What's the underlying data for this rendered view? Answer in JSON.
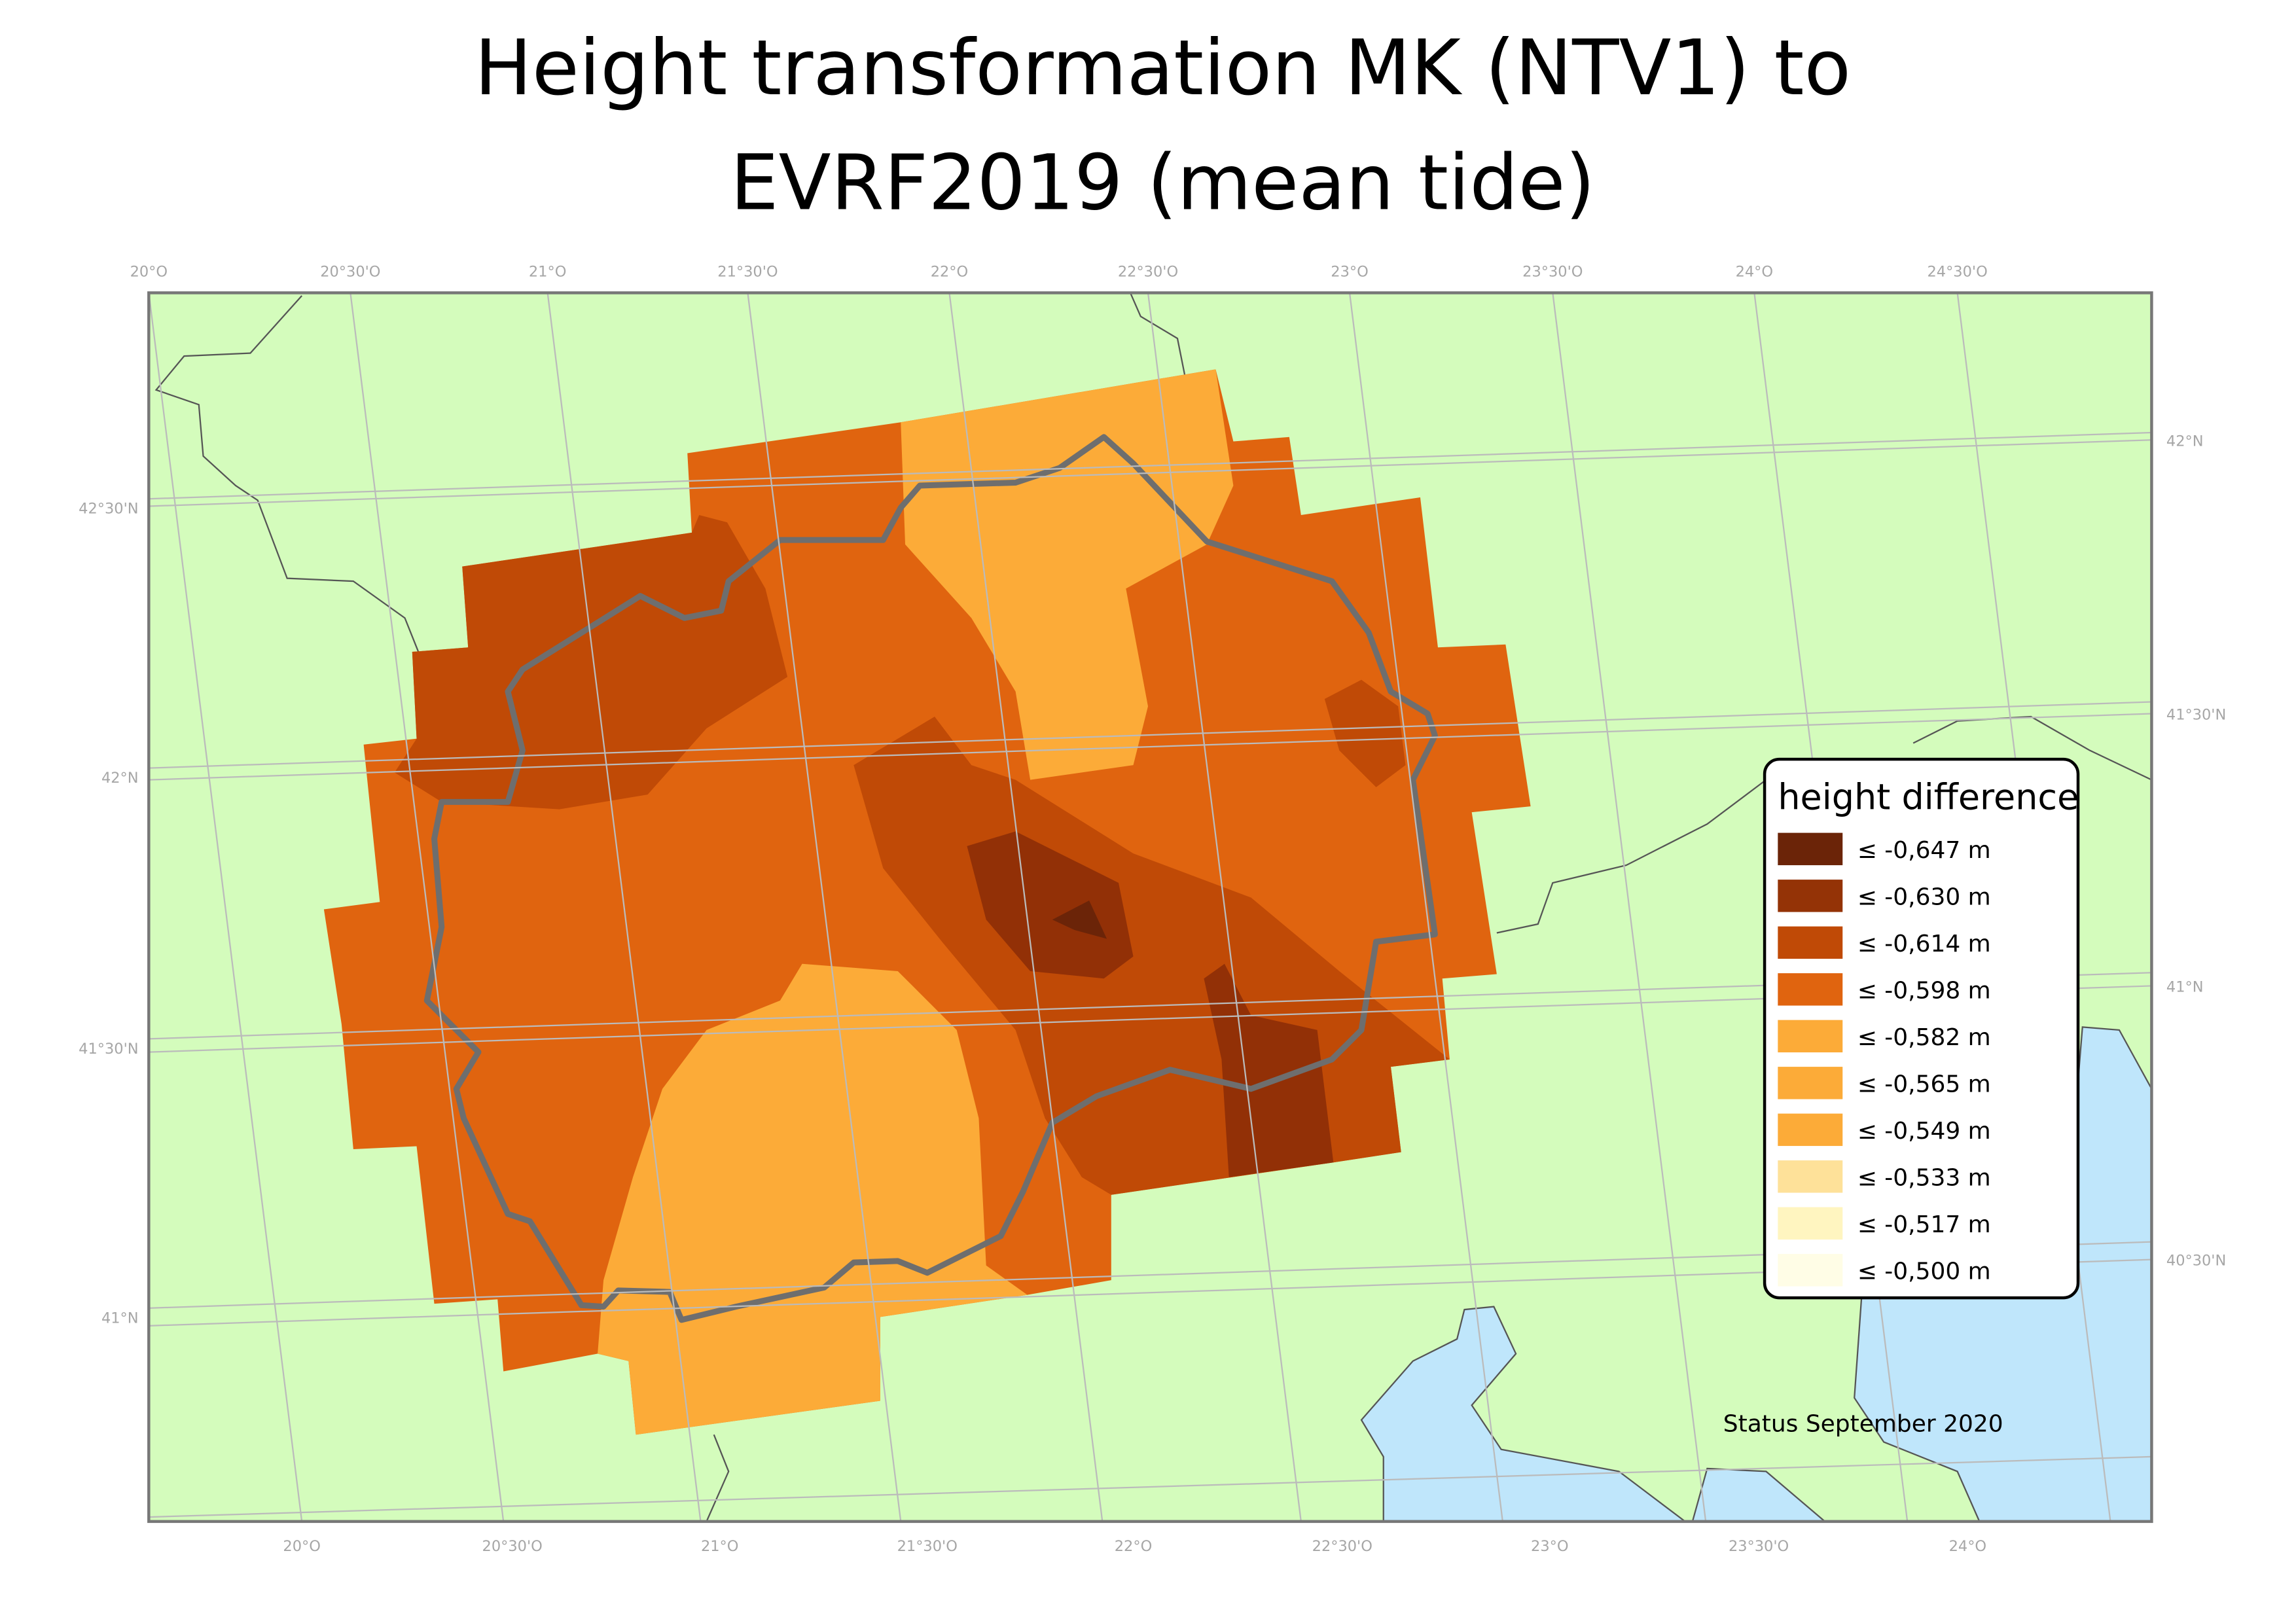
{
  "title_lines": [
    "Height transformation MK (NTV1) to",
    "EVRF2019 (mean tide)"
  ],
  "graticule": {
    "top": [
      "20°O",
      "20°30'O",
      "21°O",
      "21°30'O",
      "22°O",
      "22°30'O",
      "23°O",
      "23°30'O",
      "24°O",
      "24°30'O"
    ],
    "bottom": [
      "20°O",
      "20°30'O",
      "21°O",
      "21°30'O",
      "22°O",
      "22°30'O",
      "23°O",
      "23°30'O",
      "24°O"
    ],
    "left": [
      "42°30'N",
      "42°N",
      "41°30'N",
      "41°N"
    ],
    "right": [
      "42°N",
      "41°30'N",
      "41°N",
      "40°30'N"
    ]
  },
  "legend": {
    "title": "height difference",
    "items": [
      {
        "label": "≤ -0,647 m",
        "color": "#6b2408"
      },
      {
        "label": "≤ -0,630 m",
        "color": "#943306"
      },
      {
        "label": "≤ -0,614 m",
        "color": "#c04a06"
      },
      {
        "label": "≤ -0,598 m",
        "color": "#e0640f"
      },
      {
        "label": "≤ -0,582 m",
        "color": "#fcab38"
      },
      {
        "label": "≤ -0,565 m",
        "color": "#fcab38"
      },
      {
        "label": "≤ -0,549 m",
        "color": "#fcab38"
      },
      {
        "label": "≤ -0,533 m",
        "color": "#fee199"
      },
      {
        "label": "≤ -0,517 m",
        "color": "#fff5c0"
      },
      {
        "label": "≤ -0,500 m",
        "color": "#fffde6"
      }
    ]
  },
  "note": "Status September 2020"
}
